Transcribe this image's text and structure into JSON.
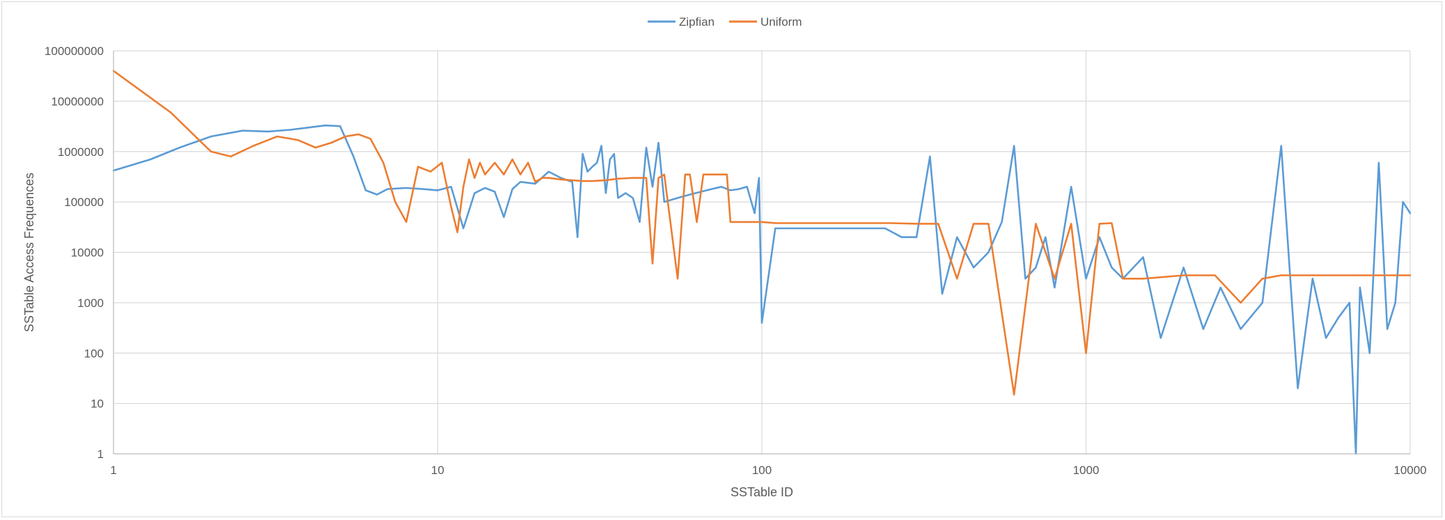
{
  "chart_data": {
    "type": "line",
    "title": "",
    "xlabel": "SSTable ID",
    "ylabel": "SSTable Access Frequences",
    "x_scale": "log",
    "y_scale": "log",
    "xlim": [
      1,
      10000
    ],
    "ylim": [
      1,
      100000000
    ],
    "x_ticks": [
      "1",
      "10",
      "100",
      "1000",
      "10000"
    ],
    "y_ticks": [
      "1",
      "10",
      "100",
      "1000",
      "10000",
      "100000",
      "1000000",
      "10000000",
      "100000000"
    ],
    "grid": true,
    "legend_position": "top",
    "series": [
      {
        "name": "Zipfian",
        "color": "#5b9bd5",
        "x": [
          1,
          1.3,
          1.6,
          2,
          2.5,
          3,
          3.5,
          4,
          4.5,
          5,
          5.5,
          6,
          6.5,
          7,
          8,
          9,
          10,
          11,
          12,
          13,
          14,
          15,
          16,
          17,
          18,
          20,
          22,
          24,
          26,
          27,
          28,
          29,
          30,
          31,
          32,
          33,
          34,
          35,
          36,
          38,
          40,
          42,
          44,
          46,
          48,
          50,
          55,
          60,
          65,
          70,
          75,
          80,
          85,
          90,
          95,
          98,
          100,
          110,
          130,
          160,
          200,
          240,
          270,
          300,
          330,
          360,
          400,
          450,
          500,
          550,
          600,
          650,
          700,
          750,
          800,
          900,
          1000,
          1100,
          1200,
          1300,
          1500,
          1700,
          2000,
          2300,
          2600,
          3000,
          3500,
          4000,
          4500,
          5000,
          5500,
          6000,
          6500,
          6800,
          7000,
          7500,
          8000,
          8500,
          9000,
          9500,
          10000
        ],
        "values": [
          420000,
          700000,
          1200000,
          2000000,
          2600000,
          2500000,
          2700000,
          3000000,
          3300000,
          3200000,
          800000,
          170000,
          140000,
          180000,
          190000,
          180000,
          170000,
          200000,
          30000,
          150000,
          190000,
          160000,
          50000,
          180000,
          250000,
          230000,
          400000,
          300000,
          250000,
          20000,
          900000,
          400000,
          500000,
          600000,
          1300000,
          150000,
          700000,
          900000,
          120000,
          150000,
          120000,
          40000,
          1200000,
          200000,
          1500000,
          100000,
          120000,
          140000,
          160000,
          180000,
          200000,
          170000,
          180000,
          200000,
          60000,
          300000,
          400,
          30000,
          30000,
          30000,
          30000,
          30000,
          20000,
          20000,
          800000,
          1500,
          20000,
          5000,
          10000,
          40000,
          1300000,
          3000,
          5000,
          20000,
          2000,
          200000,
          3000,
          20000,
          5000,
          3000,
          8000,
          200,
          5000,
          300,
          2000,
          300,
          1000,
          1300000,
          20,
          3000,
          200,
          500,
          1000,
          1,
          2000,
          100,
          600000,
          300,
          1000,
          100000,
          60000
        ]
      },
      {
        "name": "Uniform",
        "color": "#ed7d31",
        "x": [
          1,
          1.5,
          2,
          2.3,
          2.7,
          3.2,
          3.7,
          4.2,
          4.7,
          5.2,
          5.7,
          6.2,
          6.8,
          7.4,
          8,
          8.7,
          9.5,
          10.3,
          11,
          11.5,
          12,
          12.5,
          13,
          13.5,
          14,
          15,
          16,
          17,
          18,
          19,
          20,
          21,
          22,
          24,
          26,
          28,
          30,
          33,
          36,
          40,
          44,
          46,
          48,
          50,
          55,
          58,
          60,
          63,
          66,
          70,
          74,
          78,
          80,
          90,
          100,
          110,
          115,
          120,
          125,
          140,
          160,
          200,
          250,
          300,
          350,
          400,
          450,
          500,
          600,
          700,
          800,
          900,
          1000,
          1100,
          1200,
          1300,
          1500,
          2000,
          2500,
          3000,
          3500,
          4000,
          5000,
          6000,
          7000,
          8000,
          9000,
          10000
        ],
        "values": [
          40000000,
          6000000,
          1000000,
          800000,
          1300000,
          2000000,
          1700000,
          1200000,
          1500000,
          2000000,
          2200000,
          1800000,
          600000,
          100000,
          40000,
          500000,
          400000,
          600000,
          80000,
          25000,
          200000,
          700000,
          300000,
          600000,
          350000,
          600000,
          350000,
          700000,
          350000,
          600000,
          250000,
          300000,
          300000,
          280000,
          270000,
          260000,
          260000,
          270000,
          290000,
          300000,
          300000,
          6000,
          300000,
          350000,
          3000,
          350000,
          350000,
          40000,
          350000,
          350000,
          350000,
          350000,
          40000,
          40000,
          40000,
          38000,
          38000,
          38000,
          38000,
          38000,
          38000,
          38000,
          38000,
          37000,
          37000,
          3000,
          37000,
          37000,
          15,
          37000,
          3000,
          37000,
          100,
          37000,
          38000,
          3000,
          3000,
          3500,
          3500,
          1000,
          3000,
          3500,
          3500,
          3500,
          3500,
          3500,
          3500,
          3500
        ]
      }
    ]
  }
}
